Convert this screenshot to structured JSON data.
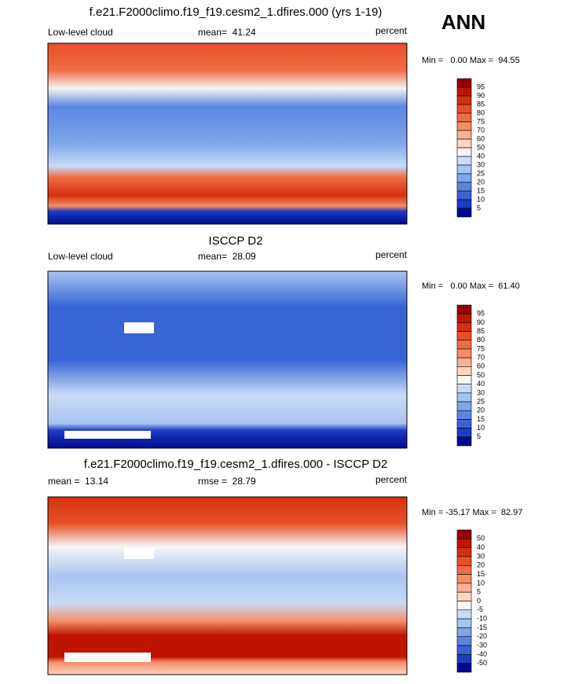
{
  "header": {
    "season": "ANN"
  },
  "panels": [
    {
      "title": "f.e21.F2000climo.f19_f19.cesm2_1.dfires.000 (yrs 1-19)",
      "left": "Low-level cloud",
      "center": "mean=  41.24",
      "right": "percent",
      "range": "Min =   0.00 Max =  94.55",
      "colorbar": {
        "labels": [
          "95",
          "90",
          "85",
          "80",
          "75",
          "70",
          "60",
          "50",
          "40",
          "30",
          "25",
          "20",
          "15",
          "10",
          "5"
        ],
        "colors": [
          "#960000",
          "#be1400",
          "#d7300f",
          "#e8502a",
          "#f06c44",
          "#f68d66",
          "#fab08e",
          "#fdd6c0",
          "#f5f5f5",
          "#c8dcf6",
          "#a8c4f0",
          "#7ea6ea",
          "#5a86e0",
          "#3864d6",
          "#1c3cc4",
          "#000a90"
        ]
      }
    },
    {
      "title": "ISCCP D2",
      "left": "Low-level cloud",
      "center": "mean=  28.09",
      "right": "percent",
      "range": "Min =   0.00 Max =  61.40",
      "colorbar": {
        "labels": [
          "95",
          "90",
          "85",
          "80",
          "75",
          "70",
          "60",
          "50",
          "40",
          "30",
          "25",
          "20",
          "15",
          "10",
          "5"
        ],
        "colors": [
          "#960000",
          "#be1400",
          "#d7300f",
          "#e8502a",
          "#f06c44",
          "#f68d66",
          "#fab08e",
          "#fdd6c0",
          "#f5f5f5",
          "#c8dcf6",
          "#a8c4f0",
          "#7ea6ea",
          "#5a86e0",
          "#3864d6",
          "#1c3cc4",
          "#000a90"
        ]
      }
    },
    {
      "title": "f.e21.F2000climo.f19_f19.cesm2_1.dfires.000 - ISCCP D2",
      "left": "mean =  13.14",
      "center": "rmse =  28.79",
      "right": "percent",
      "range": "Min = -35.17 Max =  82.97",
      "colorbar": {
        "labels": [
          "50",
          "40",
          "30",
          "20",
          "15",
          "10",
          "5",
          "0",
          "-5",
          "-10",
          "-15",
          "-20",
          "-30",
          "-40",
          "-50"
        ],
        "colors": [
          "#960000",
          "#be1400",
          "#d7300f",
          "#e8502a",
          "#f06c44",
          "#f68d66",
          "#fab08e",
          "#fdd6c0",
          "#f5f5f5",
          "#c8dcf6",
          "#a8c4f0",
          "#7ea6ea",
          "#5a86e0",
          "#3864d6",
          "#1c3cc4",
          "#000a90"
        ]
      }
    }
  ]
}
